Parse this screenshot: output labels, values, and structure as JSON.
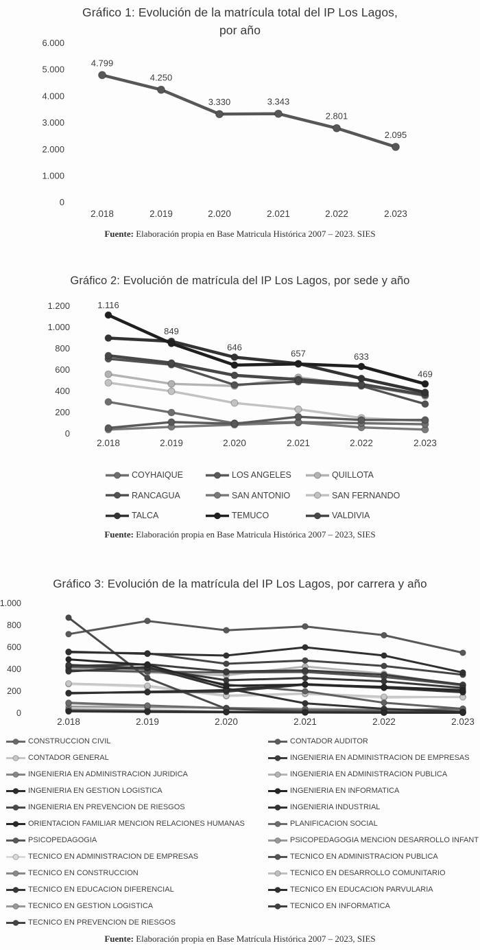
{
  "chart_data": [
    {
      "id": "grafico-1",
      "type": "line",
      "title_line1": "Gráfico 1: Evolución de la matrícula total del IP Los Lagos,",
      "title_line2": "por año",
      "x_tick_labels": [
        "2.018",
        "2.019",
        "2.020",
        "2.021",
        "2.022",
        "2.023"
      ],
      "y_tick_labels": [
        "6.000",
        "5.000",
        "4.000",
        "3.000",
        "2.000",
        "1.000",
        "0"
      ],
      "ylim": [
        0,
        6000
      ],
      "y_step": 1000,
      "grid": false,
      "legend_position": "none",
      "series": [
        {
          "name": "Matrícula total IP Los Lagos",
          "color": "#575757",
          "values": [
            4799,
            4250,
            3330,
            3343,
            2801,
            2095
          ]
        }
      ],
      "data_labels": [
        "4.799",
        "4.250",
        "3.330",
        "3.343",
        "2.801",
        "2.095"
      ],
      "source_label": "Fuente:",
      "source_text": "Elaboración propia en Base Matricula Histórica 2007 – 2023. SIES"
    },
    {
      "id": "grafico-2",
      "type": "line",
      "title": "Gráfico 2: Evolución de matrícula del IP Los Lagos, por sede y año",
      "x_tick_labels": [
        "2.018",
        "2.019",
        "2.020",
        "2.021",
        "2.022",
        "2.023"
      ],
      "y_tick_labels": [
        "1.200",
        "1.000",
        "800",
        "600",
        "400",
        "200",
        "0"
      ],
      "ylim": [
        0,
        1200
      ],
      "y_step": 200,
      "grid": false,
      "legend_position": "bottom",
      "series": [
        {
          "name": "COYHAIQUE",
          "color": "#6e6e6e",
          "values": [
            300,
            200,
            100,
            110,
            100,
            90
          ]
        },
        {
          "name": "LOS ANGELES",
          "color": "#5a5a5a",
          "values": [
            55,
            110,
            95,
            160,
            130,
            130
          ]
        },
        {
          "name": "QUILLOTA",
          "color": "#b3b3b3",
          "values": [
            560,
            470,
            450,
            530,
            455,
            355
          ]
        },
        {
          "name": "RANCAGUA",
          "color": "#525252",
          "values": [
            705,
            650,
            460,
            490,
            450,
            280
          ]
        },
        {
          "name": "SAN ANTONIO",
          "color": "#7a7a7a",
          "values": [
            40,
            65,
            85,
            105,
            60,
            40
          ]
        },
        {
          "name": "SAN FERNANDO",
          "color": "#c2c2c2",
          "values": [
            480,
            400,
            290,
            230,
            150,
            120
          ]
        },
        {
          "name": "TALCA",
          "color": "#333333",
          "values": [
            900,
            870,
            720,
            660,
            520,
            390
          ]
        },
        {
          "name": "TEMUCO",
          "color": "#1f1f1f",
          "values": [
            1116,
            849,
            646,
            657,
            633,
            469
          ]
        },
        {
          "name": "VALDIVIA",
          "color": "#474747",
          "values": [
            735,
            665,
            550,
            510,
            465,
            365
          ]
        }
      ],
      "data_labels": [
        "1.116",
        "849",
        "646",
        "657",
        "633",
        "469"
      ],
      "source_label": "Fuente:",
      "source_text": "Elaboración propia en Base Matricula Histórica 2007 – 2023, SIES"
    },
    {
      "id": "grafico-3",
      "type": "line",
      "title": "Gráfico 3: Evolución de la matrícula del IP Los Lagos, por carrera y año",
      "x_tick_labels": [
        "2.018",
        "2.019",
        "2.020",
        "2.021",
        "2.022",
        "2.023"
      ],
      "y_tick_labels": [
        "1.000",
        "800",
        "600",
        "400",
        "200",
        "0"
      ],
      "ylim": [
        0,
        1000
      ],
      "y_step": 200,
      "grid": false,
      "legend_position": "bottom",
      "series": [
        {
          "name": "CONSTRUCCION CIVIL",
          "color": "#6b6b6b",
          "values": [
            95,
            70,
            45,
            30,
            25,
            40
          ]
        },
        {
          "name": "CONTADOR AUDITOR",
          "color": "#5f5f5f",
          "values": [
            420,
            400,
            260,
            200,
            95,
            40
          ]
        },
        {
          "name": "CONTADOR GENERAL",
          "color": "#c7c7c7",
          "values": [
            270,
            250,
            160,
            180,
            150,
            145
          ]
        },
        {
          "name": "INGENIERIA EN ADMINISTRACION DE EMPRESAS",
          "color": "#3d3d3d",
          "values": [
            430,
            445,
            380,
            390,
            350,
            260
          ]
        },
        {
          "name": "INGENIERIA EN ADMINISTRACION JURIDICA",
          "color": "#868686",
          "values": [
            30,
            20,
            12,
            8,
            6,
            5
          ]
        },
        {
          "name": "INGENIERIA EN ADMINISTRACION PUBLICA",
          "color": "#b5b5b5",
          "values": [
            400,
            370,
            345,
            425,
            360,
            250
          ]
        },
        {
          "name": "INGENIERIA EN GESTION LOGISTICA",
          "color": "#2e2e2e",
          "values": [
            180,
            195,
            210,
            265,
            235,
            195
          ]
        },
        {
          "name": "INGENIERIA EN INFORMATICA",
          "color": "#262626",
          "values": [
            490,
            440,
            250,
            260,
            240,
            210
          ]
        },
        {
          "name": "INGENIERIA EN PREVENCION DE RIESGOS",
          "color": "#4a4a4a",
          "values": [
            870,
            320,
            40,
            15,
            10,
            8
          ]
        },
        {
          "name": "INGENIERIA INDUSTRIAL",
          "color": "#333333",
          "values": [
            380,
            420,
            225,
            90,
            40,
            12
          ]
        },
        {
          "name": "ORIENTACION FAMILIAR MENCION RELACIONES HUMANAS",
          "color": "#2a2a2a",
          "values": [
            20,
            15,
            10,
            6,
            5,
            5
          ]
        },
        {
          "name": "PLANIFICACION SOCIAL",
          "color": "#6f6f6f",
          "values": [
            15,
            10,
            8,
            6,
            5,
            4
          ]
        },
        {
          "name": "PSICOPEDAGOGIA",
          "color": "#595959",
          "values": [
            720,
            840,
            755,
            790,
            710,
            550
          ]
        },
        {
          "name": "PSICOPEDAGOGIA MENCION DESARROLLO INFANT",
          "color": "#9a9a9a",
          "values": [
            60,
            55,
            48,
            40,
            30,
            25
          ]
        },
        {
          "name": "TECNICO EN ADMINISTRACION DE EMPRESAS",
          "color": "#d9d9d9",
          "values": [
            265,
            240,
            155,
            175,
            140,
            150
          ]
        },
        {
          "name": "TECNICO EN ADMINISTRACION PUBLICA",
          "color": "#555555",
          "values": [
            390,
            380,
            370,
            375,
            330,
            255
          ]
        },
        {
          "name": "TECNICO EN CONSTRUCCION",
          "color": "#8a8a8a",
          "values": [
            35,
            25,
            15,
            10,
            8,
            6
          ]
        },
        {
          "name": "TECNICO EN DESARROLLO COMUNITARIO",
          "color": "#c0c0c0",
          "values": [
            25,
            18,
            12,
            8,
            6,
            5
          ]
        },
        {
          "name": "TECNICO EN EDUCACION DIFERENCIAL",
          "color": "#383838",
          "values": [
            440,
            410,
            300,
            320,
            290,
            230
          ]
        },
        {
          "name": "TECNICO EN EDUCACION PARVULARIA",
          "color": "#303030",
          "values": [
            560,
            540,
            525,
            600,
            525,
            370
          ]
        },
        {
          "name": "TECNICO EN GESTION LOGISTICA",
          "color": "#999999",
          "values": [
            90,
            65,
            45,
            35,
            28,
            22
          ]
        },
        {
          "name": "TECNICO EN INFORMATICA",
          "color": "#404040",
          "values": [
            185,
            190,
            195,
            260,
            230,
            190
          ]
        },
        {
          "name": "TECNICO EN PREVENCION DE RIESGOS",
          "color": "#454545",
          "values": [
            555,
            545,
            450,
            480,
            430,
            350
          ]
        }
      ],
      "source_label": "Fuente:",
      "source_text": "Elaboración propia en Base Matrícula Histórica 2007 – 2023, SIES"
    }
  ]
}
